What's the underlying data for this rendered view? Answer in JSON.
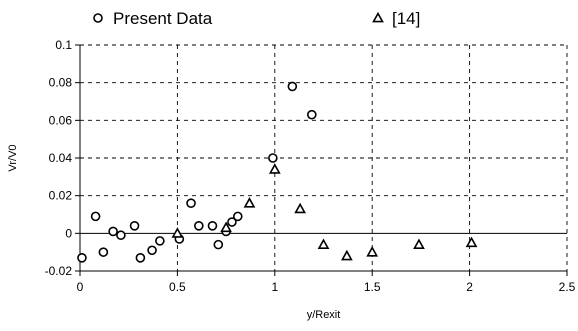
{
  "chart_data": {
    "type": "scatter",
    "title": "",
    "xlabel": "y/Rexit",
    "ylabel": "Vr/V0",
    "xlim": [
      0,
      2.5
    ],
    "ylim": [
      -0.02,
      0.1
    ],
    "x_ticks": [
      0,
      0.5,
      1,
      1.5,
      2,
      2.5
    ],
    "x_tick_labels": [
      "0",
      "0.5",
      "1",
      "1.5",
      "2",
      "2.5"
    ],
    "y_ticks": [
      -0.02,
      0,
      0.02,
      0.04,
      0.06,
      0.08,
      0.1
    ],
    "y_tick_labels": [
      "-0.02",
      "0",
      "0.02",
      "0.04",
      "0.06",
      "0.08",
      "0.1"
    ],
    "grid": "dashed",
    "legend_position": "top",
    "series": [
      {
        "name": "Present Data",
        "marker": "circle",
        "color": "#000000",
        "x": [
          0.01,
          0.08,
          0.12,
          0.17,
          0.21,
          0.28,
          0.31,
          0.37,
          0.41,
          0.51,
          0.57,
          0.61,
          0.68,
          0.71,
          0.75,
          0.78,
          0.81,
          0.99,
          1.09,
          1.19
        ],
        "y": [
          -0.013,
          0.009,
          -0.01,
          0.001,
          -0.001,
          0.004,
          -0.013,
          -0.009,
          -0.004,
          -0.003,
          0.016,
          0.004,
          0.004,
          -0.006,
          0.001,
          0.006,
          0.009,
          0.04,
          0.078,
          0.063
        ]
      },
      {
        "name": "[14]",
        "marker": "triangle",
        "color": "#000000",
        "x": [
          0.5,
          0.75,
          0.87,
          1.0,
          1.13,
          1.25,
          1.37,
          1.5,
          1.74,
          2.01
        ],
        "y": [
          0.0,
          0.003,
          0.016,
          0.034,
          0.013,
          -0.006,
          -0.012,
          -0.01,
          -0.006,
          -0.005
        ]
      }
    ]
  }
}
